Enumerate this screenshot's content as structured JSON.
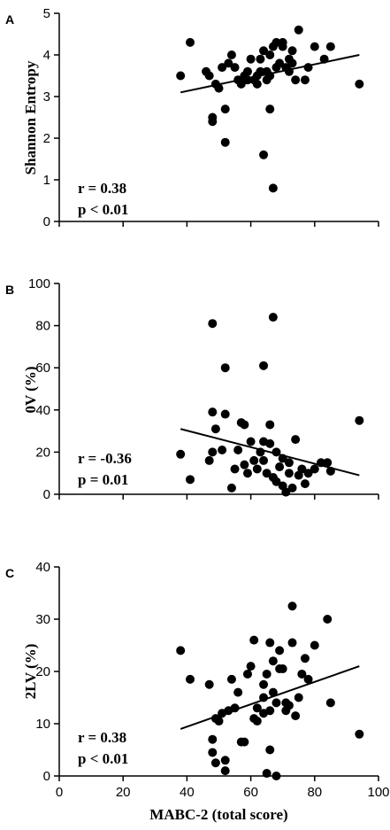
{
  "chart_data": [
    {
      "type": "scatter",
      "panel_label": "A",
      "ylabel": "Shannon Entropy",
      "xlabel": "",
      "xlim": [
        0,
        100
      ],
      "ylim": [
        0,
        5
      ],
      "yticks": [
        0,
        1,
        2,
        3,
        4,
        5
      ],
      "xticks": [],
      "annotations": [
        "r = 0.38",
        "p < 0.01"
      ],
      "regression_line": {
        "x": [
          38,
          94
        ],
        "y": [
          3.1,
          4.0
        ]
      },
      "points": [
        [
          38,
          3.5
        ],
        [
          41,
          4.3
        ],
        [
          46,
          3.6
        ],
        [
          47,
          3.5
        ],
        [
          48,
          2.5
        ],
        [
          48,
          2.4
        ],
        [
          49,
          3.3
        ],
        [
          50,
          3.2
        ],
        [
          51,
          3.7
        ],
        [
          52,
          2.7
        ],
        [
          52,
          1.9
        ],
        [
          53,
          3.8
        ],
        [
          54,
          4.0
        ],
        [
          55,
          3.7
        ],
        [
          56,
          3.4
        ],
        [
          57,
          3.3
        ],
        [
          58,
          3.5
        ],
        [
          59,
          3.6
        ],
        [
          59,
          3.4
        ],
        [
          60,
          3.9
        ],
        [
          61,
          3.4
        ],
        [
          62,
          3.5
        ],
        [
          62,
          3.3
        ],
        [
          63,
          3.6
        ],
        [
          63,
          3.9
        ],
        [
          64,
          4.1
        ],
        [
          64,
          1.6
        ],
        [
          65,
          3.4
        ],
        [
          65,
          3.6
        ],
        [
          66,
          4.0
        ],
        [
          66,
          2.7
        ],
        [
          66,
          3.5
        ],
        [
          67,
          4.2
        ],
        [
          67,
          0.8
        ],
        [
          68,
          3.7
        ],
        [
          68,
          4.3
        ],
        [
          69,
          3.8
        ],
        [
          70,
          4.2
        ],
        [
          70,
          4.3
        ],
        [
          71,
          3.7
        ],
        [
          72,
          3.6
        ],
        [
          72,
          3.9
        ],
        [
          73,
          4.1
        ],
        [
          73,
          3.8
        ],
        [
          74,
          3.4
        ],
        [
          75,
          4.6
        ],
        [
          77,
          3.4
        ],
        [
          78,
          3.7
        ],
        [
          80,
          4.2
        ],
        [
          83,
          3.9
        ],
        [
          85,
          4.2
        ],
        [
          94,
          3.3
        ]
      ]
    },
    {
      "type": "scatter",
      "panel_label": "B",
      "ylabel": "0V (%)",
      "xlabel": "",
      "xlim": [
        0,
        100
      ],
      "ylim": [
        0,
        100
      ],
      "yticks": [
        0,
        20,
        40,
        60,
        80,
        100
      ],
      "xticks": [],
      "annotations": [
        "r = -0.36",
        "p = 0.01"
      ],
      "regression_line": {
        "x": [
          38,
          94
        ],
        "y": [
          31,
          9
        ]
      },
      "points": [
        [
          38,
          19
        ],
        [
          41,
          7
        ],
        [
          47,
          16
        ],
        [
          48,
          81
        ],
        [
          48,
          39
        ],
        [
          48,
          20
        ],
        [
          49,
          31
        ],
        [
          51,
          21
        ],
        [
          52,
          60
        ],
        [
          52,
          38
        ],
        [
          54,
          3
        ],
        [
          55,
          12
        ],
        [
          56,
          21
        ],
        [
          57,
          34
        ],
        [
          58,
          14
        ],
        [
          58,
          33
        ],
        [
          59,
          10
        ],
        [
          60,
          25
        ],
        [
          61,
          16
        ],
        [
          62,
          12
        ],
        [
          63,
          20
        ],
        [
          64,
          61
        ],
        [
          64,
          25
        ],
        [
          64,
          16
        ],
        [
          65,
          10
        ],
        [
          66,
          24
        ],
        [
          66,
          33
        ],
        [
          67,
          84
        ],
        [
          67,
          8
        ],
        [
          68,
          20
        ],
        [
          68,
          6
        ],
        [
          69,
          13
        ],
        [
          70,
          4
        ],
        [
          70,
          17
        ],
        [
          71,
          1
        ],
        [
          72,
          10
        ],
        [
          72,
          15
        ],
        [
          73,
          3
        ],
        [
          74,
          26
        ],
        [
          75,
          9
        ],
        [
          76,
          12
        ],
        [
          77,
          5
        ],
        [
          78,
          10
        ],
        [
          80,
          12
        ],
        [
          82,
          15
        ],
        [
          84,
          15
        ],
        [
          85,
          11
        ],
        [
          94,
          35
        ]
      ]
    },
    {
      "type": "scatter",
      "panel_label": "C",
      "ylabel": "2LV (%)",
      "xlabel": "MABC-2 (total score)",
      "xlim": [
        0,
        100
      ],
      "ylim": [
        0,
        40
      ],
      "yticks": [
        0,
        10,
        20,
        30,
        40
      ],
      "xticks": [
        0,
        20,
        40,
        60,
        80,
        100
      ],
      "annotations": [
        "r = 0.38",
        "p < 0.01"
      ],
      "regression_line": {
        "x": [
          38,
          94
        ],
        "y": [
          9,
          21
        ]
      },
      "points": [
        [
          38,
          24
        ],
        [
          41,
          18.5
        ],
        [
          47,
          17.5
        ],
        [
          48,
          7
        ],
        [
          48,
          4.5
        ],
        [
          49,
          11
        ],
        [
          49,
          2.5
        ],
        [
          50,
          10.5
        ],
        [
          51,
          12
        ],
        [
          52,
          3
        ],
        [
          52,
          1
        ],
        [
          53,
          12.5
        ],
        [
          54,
          18.5
        ],
        [
          55,
          13
        ],
        [
          56,
          16
        ],
        [
          57,
          6.5
        ],
        [
          58,
          6.5
        ],
        [
          59,
          19.5
        ],
        [
          60,
          21
        ],
        [
          61,
          11
        ],
        [
          61,
          26
        ],
        [
          62,
          13
        ],
        [
          62,
          10.5
        ],
        [
          64,
          17.5
        ],
        [
          64,
          15
        ],
        [
          64,
          12
        ],
        [
          65,
          19.5
        ],
        [
          65,
          0.5
        ],
        [
          66,
          25.5
        ],
        [
          66,
          5
        ],
        [
          66,
          12.5
        ],
        [
          67,
          22
        ],
        [
          67,
          16
        ],
        [
          68,
          14
        ],
        [
          68,
          0
        ],
        [
          69,
          24
        ],
        [
          69,
          20.5
        ],
        [
          70,
          20.5
        ],
        [
          71,
          12.5
        ],
        [
          71,
          14
        ],
        [
          72,
          13.5
        ],
        [
          73,
          32.5
        ],
        [
          73,
          25.5
        ],
        [
          74,
          11.5
        ],
        [
          75,
          15
        ],
        [
          76,
          19.5
        ],
        [
          77,
          22.5
        ],
        [
          78,
          18.5
        ],
        [
          80,
          25
        ],
        [
          84,
          30
        ],
        [
          85,
          14
        ],
        [
          94,
          8
        ]
      ]
    }
  ]
}
